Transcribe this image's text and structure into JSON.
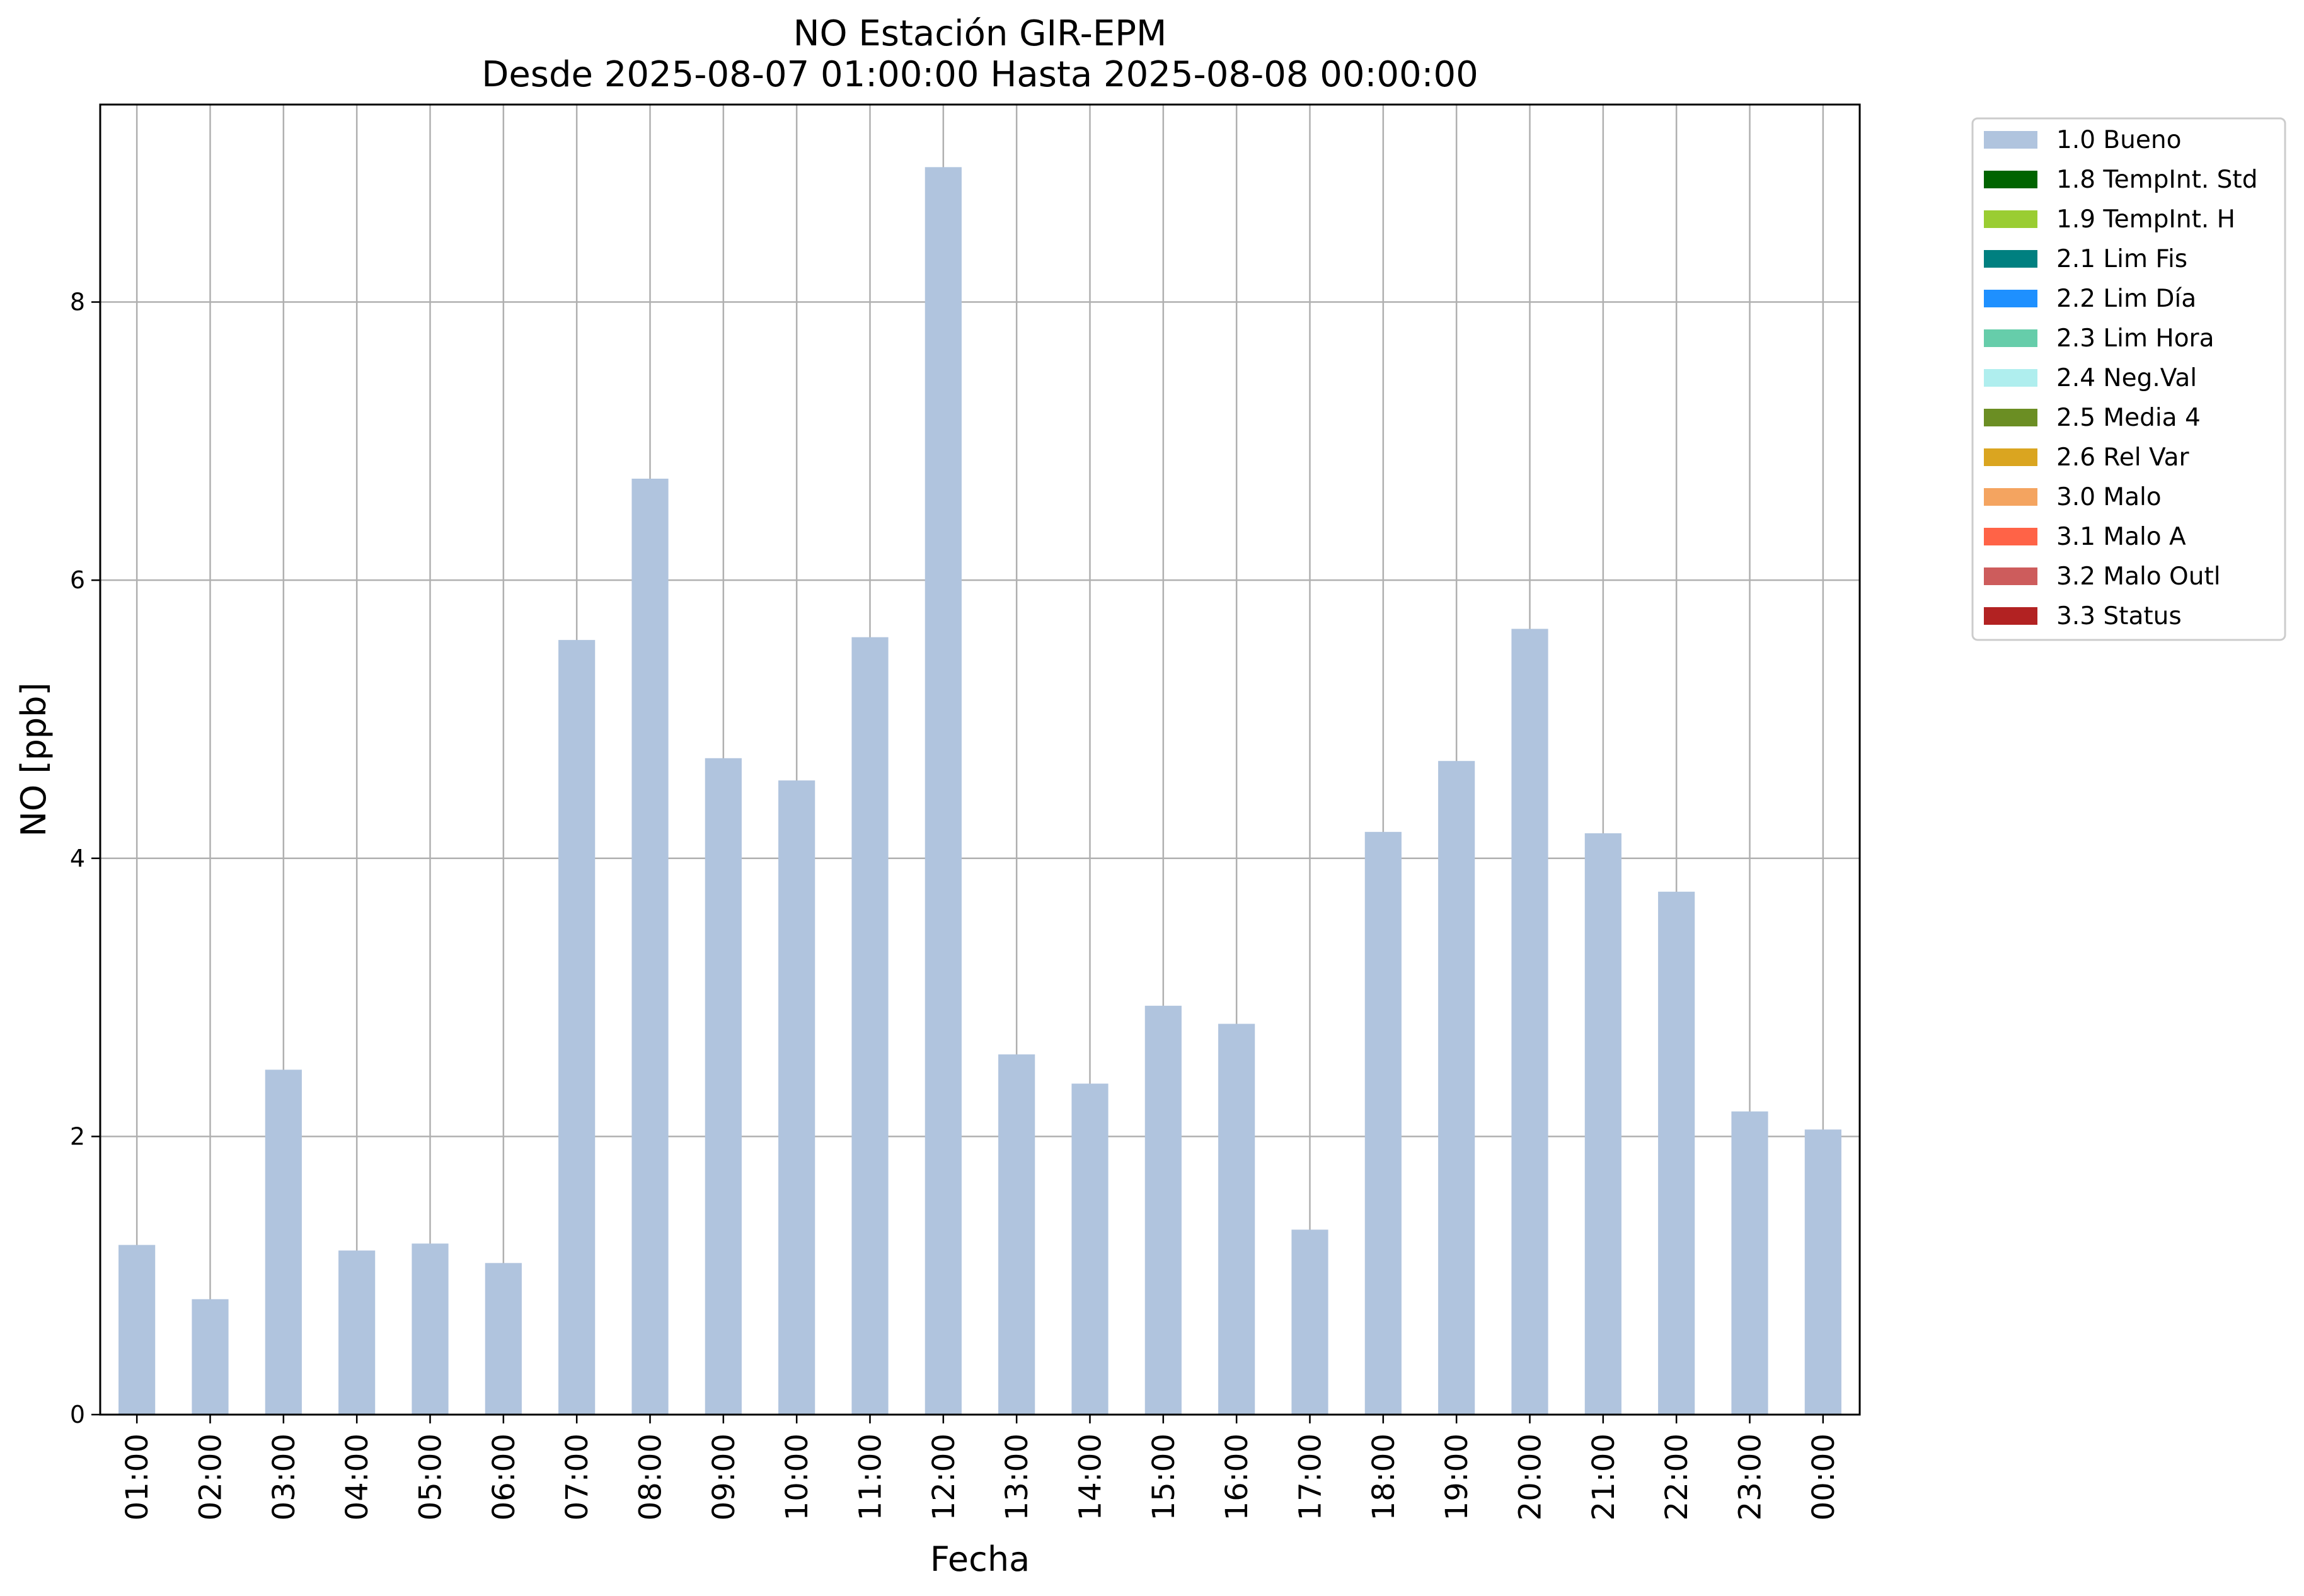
{
  "chart_data": {
    "type": "bar",
    "title": "NO Estación GIR-EPM",
    "subtitle": "Desde 2025-08-07 01:00:00 Hasta 2025-08-08 00:00:00",
    "xlabel": "Fecha",
    "ylabel": "NO [ppb]",
    "ylim": [
      0,
      9.42
    ],
    "yticks": [
      0,
      2,
      4,
      6,
      8
    ],
    "grid": true,
    "legend_position": "outside-top-right",
    "categories": [
      "01:00",
      "02:00",
      "03:00",
      "04:00",
      "05:00",
      "06:00",
      "07:00",
      "08:00",
      "09:00",
      "10:00",
      "11:00",
      "12:00",
      "13:00",
      "14:00",
      "15:00",
      "16:00",
      "17:00",
      "18:00",
      "19:00",
      "20:00",
      "21:00",
      "22:00",
      "23:00",
      "00:00"
    ],
    "series": [
      {
        "name": "1.0 Bueno",
        "color": "#b0c4de",
        "values": [
          1.22,
          0.83,
          2.48,
          1.18,
          1.23,
          1.09,
          5.57,
          6.73,
          4.72,
          4.56,
          5.59,
          8.97,
          2.59,
          2.38,
          2.94,
          2.81,
          1.33,
          4.19,
          4.7,
          5.65,
          4.18,
          3.76,
          2.18,
          2.05
        ]
      }
    ],
    "legend": [
      {
        "label": "1.0 Bueno",
        "color": "#b0c4de"
      },
      {
        "label": "1.8 TempInt. Std",
        "color": "#006400"
      },
      {
        "label": "1.9 TempInt. H",
        "color": "#9acd32"
      },
      {
        "label": "2.1 Lim Fis",
        "color": "#008080"
      },
      {
        "label": "2.2 Lim Día",
        "color": "#1e90ff"
      },
      {
        "label": "2.3 Lim Hora",
        "color": "#66cdaa"
      },
      {
        "label": "2.4 Neg.Val",
        "color": "#afeeee"
      },
      {
        "label": "2.5 Media 4",
        "color": "#6b8e23"
      },
      {
        "label": "2.6 Rel Var",
        "color": "#daa520"
      },
      {
        "label": "3.0 Malo",
        "color": "#f4a460"
      },
      {
        "label": "3.1 Malo A",
        "color": "#ff6347"
      },
      {
        "label": "3.2 Malo Outl",
        "color": "#cd5c5c"
      },
      {
        "label": "3.3 Status",
        "color": "#b22222"
      }
    ]
  }
}
